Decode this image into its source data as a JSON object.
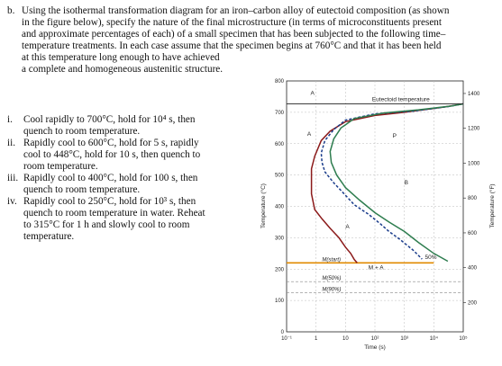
{
  "problem": {
    "label": "b.",
    "lines": [
      "Using the isothermal transformation diagram for an iron–carbon alloy of eutectoid composition (as shown",
      "in the figure below), specify the nature of the final microstructure (in terms of microconstituents present",
      "and approximate percentages of each) of a small specimen that has been subjected to the following time–",
      "temperature treatments. In each case assume that the specimen begins at 760°C and that it has been held",
      "at this temperature long enough to have achieved",
      "a complete and homogeneous austenitic structure."
    ]
  },
  "items": [
    {
      "num": "i.",
      "lines": [
        "Cool rapidly to 700°C, hold for 10⁴ s, then",
        "quench to room temperature."
      ]
    },
    {
      "num": "ii.",
      "lines": [
        "Rapidly cool to 600°C, hold for 5 s, rapidly",
        "cool to 448°C, hold for 10 s, then quench to",
        "room temperature."
      ]
    },
    {
      "num": "iii.",
      "lines": [
        "Rapidly cool to 400°C, hold for 100 s, then",
        "quench to room temperature."
      ]
    },
    {
      "num": "iv.",
      "lines": [
        "Rapidly cool to 250°C, hold for 10³ s, then",
        "quench to room temperature in water. Reheat",
        "to 315°C for 1 h and slowly cool to room",
        "temperature."
      ]
    }
  ],
  "chart_data": {
    "type": "line",
    "xlabel": "Time (s)",
    "ylabel": "Temperature (°C)",
    "y2label": "Temperature (°F)",
    "xscale": "log",
    "xlim": [
      0.1,
      100000
    ],
    "ylim": [
      0,
      800
    ],
    "x_ticks": [
      "10⁻¹",
      "1",
      "10",
      "10²",
      "10³",
      "10⁴",
      "10⁵"
    ],
    "y_ticks": [
      "0",
      "100",
      "200",
      "300",
      "400",
      "500",
      "600",
      "700",
      "800"
    ],
    "y2_ticks": [
      "200",
      "400",
      "600",
      "800",
      "1000",
      "1200",
      "1400"
    ],
    "eutectoid_temperature": 727,
    "eutectoid_label": "Eutectoid temperature",
    "ms_lines": [
      {
        "label": "M(start)",
        "temp": 220
      },
      {
        "label": "M(50%)",
        "temp": 160
      },
      {
        "label": "M(90%)",
        "temp": 125
      }
    ],
    "region_labels": [
      {
        "text": "A",
        "x": 0.65,
        "y": 755
      },
      {
        "text": "A",
        "x": 0.5,
        "y": 625
      },
      {
        "text": "P",
        "x": 400,
        "y": 620
      },
      {
        "text": "B",
        "x": 1000,
        "y": 470
      },
      {
        "text": "A",
        "x": 10,
        "y": 330
      },
      {
        "text": "M + A",
        "x": 60,
        "y": 200
      },
      {
        "text": "50%",
        "x": 5000,
        "y": 232
      }
    ],
    "series": [
      {
        "name": "",
        "color": "#8b1a1a",
        "x": [
          100000,
          20000,
          1000,
          100,
          10,
          3,
          1.5,
          0.9,
          0.7,
          0.7,
          0.9,
          1.6,
          3,
          6,
          10,
          15,
          20,
          25
        ],
        "y": [
          727,
          716,
          700,
          690,
          670,
          640,
          610,
          560,
          520,
          440,
          390,
          360,
          330,
          300,
          270,
          250,
          230,
          220
        ]
      },
      {
        "name": "",
        "color": "#1a3c8b",
        "x": [
          100000,
          30000,
          2000,
          100,
          10,
          4,
          2,
          1.5,
          1.6,
          2,
          4,
          8,
          20,
          60,
          150,
          300,
          700,
          2000,
          4000
        ],
        "y": [
          727,
          718,
          704,
          695,
          675,
          645,
          610,
          570,
          540,
          510,
          475,
          445,
          405,
          375,
          345,
          320,
          295,
          260,
          232
        ]
      },
      {
        "name": "",
        "color": "#2e7d4f",
        "x": [
          100000,
          40000,
          3000,
          200,
          20,
          7,
          4,
          3,
          3.3,
          5,
          10,
          30,
          100,
          300,
          1000,
          3000,
          10000,
          30000
        ],
        "y": [
          727,
          720,
          708,
          698,
          680,
          650,
          615,
          575,
          540,
          500,
          460,
          420,
          380,
          350,
          320,
          285,
          250,
          225
        ]
      }
    ]
  }
}
